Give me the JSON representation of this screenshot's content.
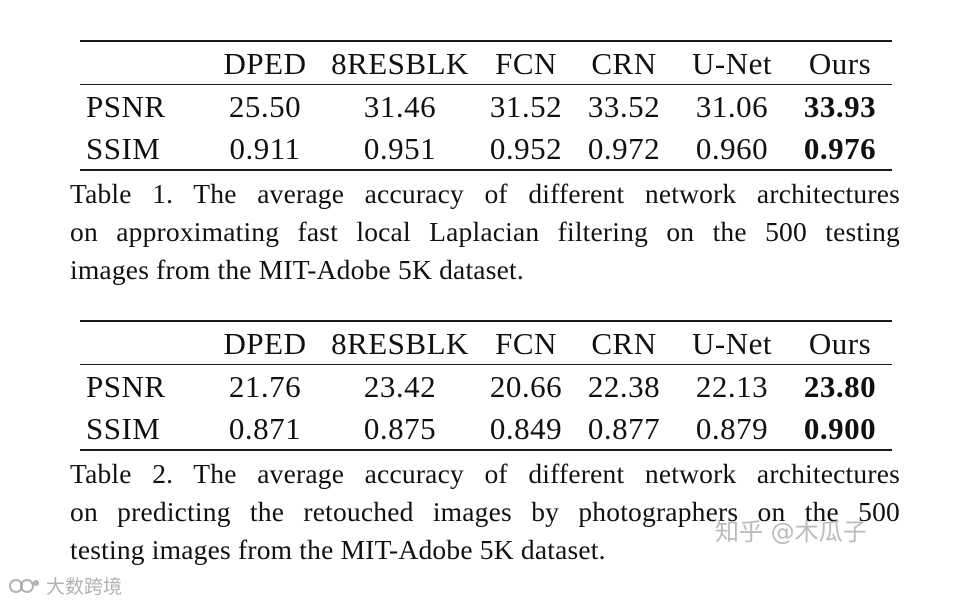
{
  "header": [
    "",
    "DPED",
    "8RESBLK",
    "FCN",
    "CRN",
    "U-Net",
    "Ours"
  ],
  "tables": [
    {
      "rows": [
        {
          "metric": "PSNR",
          "values": [
            "25.50",
            "31.46",
            "31.52",
            "33.52",
            "31.06",
            "33.93"
          ]
        },
        {
          "metric": "SSIM",
          "values": [
            "0.911",
            "0.951",
            "0.952",
            "0.972",
            "0.960",
            "0.976"
          ]
        }
      ],
      "caption_lines": [
        "Table 1. The average accuracy of different network architectures",
        "on approximating fast local Laplacian filtering on the 500 testing",
        "images from the MIT-Adobe 5K dataset."
      ]
    },
    {
      "rows": [
        {
          "metric": "PSNR",
          "values": [
            "21.76",
            "23.42",
            "20.66",
            "22.38",
            "22.13",
            "23.80"
          ]
        },
        {
          "metric": "SSIM",
          "values": [
            "0.871",
            "0.875",
            "0.849",
            "0.877",
            "0.879",
            "0.900"
          ]
        }
      ],
      "caption_lines": [
        "Table 2. The average accuracy of different network architectures",
        "on predicting the retouched images by photographers on the 500",
        "testing images from the MIT-Adobe 5K dataset."
      ]
    }
  ],
  "watermarks": {
    "zhihu": "知乎 @木瓜子",
    "bottom": "大数跨境"
  }
}
